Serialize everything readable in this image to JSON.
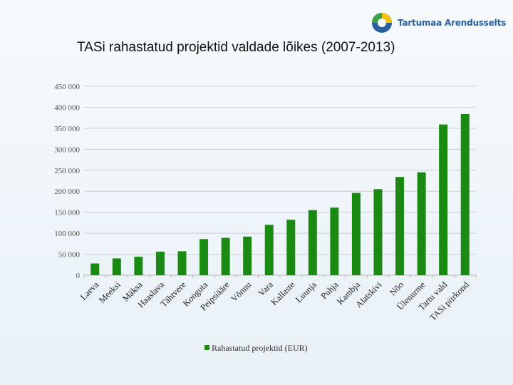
{
  "header": {
    "logo_text": "Tartumaa Arendusselts",
    "title": "TASi rahastatud projektid valdade lõikes (2007-2013)"
  },
  "colors": {
    "bar": "#1a8a12",
    "grid": "#c8cdd2",
    "axis": "#b5b5b5"
  },
  "chart_data": {
    "type": "bar",
    "title": "TASi rahastatud projektid valdade lõikes (2007-2013)",
    "categories": [
      "Laeva",
      "Meeksi",
      "Mäksa",
      "Haaslava",
      "Tähtvere",
      "Konguta",
      "Peipsiääre",
      "Võnnu",
      "Vara",
      "Kallaste",
      "Luunja",
      "Puhja",
      "Kambja",
      "Alatskivi",
      "Nõo",
      "Ülenurme",
      "Tartu vald",
      "TASi piirkond"
    ],
    "series": [
      {
        "name": "Rahastatud projektid (EUR)",
        "values": [
          28000,
          40000,
          44000,
          56000,
          57000,
          86000,
          89000,
          92000,
          120000,
          132000,
          155000,
          161000,
          196000,
          205000,
          234000,
          245000,
          359000,
          384000
        ]
      }
    ],
    "yticks": [
      0,
      50000,
      100000,
      150000,
      200000,
      250000,
      300000,
      350000,
      400000,
      450000
    ],
    "ytick_labels": [
      "0",
      "50 000",
      "100 000",
      "150 000",
      "200 000",
      "250 000",
      "300 000",
      "350 000",
      "400 000",
      "450 000"
    ],
    "ylim": [
      0,
      450000
    ],
    "xlabel": "",
    "ylabel": "",
    "grid": true,
    "legend": "bottom"
  }
}
